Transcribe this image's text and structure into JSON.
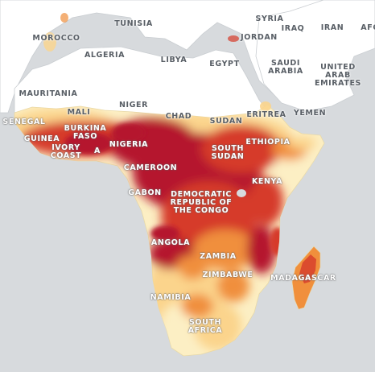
{
  "colors": {
    "ocean": "#d7dadd",
    "land_north": "#ffffff",
    "border": "#c9cdd1",
    "risk_very_high": "#b5122e",
    "risk_high": "#d63a2a",
    "risk_medium": "#f08f3c",
    "risk_low": "#fbd48c",
    "risk_very_low": "#fcefc4"
  },
  "labels": [
    {
      "id": "syria",
      "text": "SYRIA",
      "tone": "n"
    },
    {
      "id": "iraq",
      "text": "IRAQ",
      "tone": "n"
    },
    {
      "id": "iran",
      "text": "IRAN",
      "tone": "n"
    },
    {
      "id": "afg",
      "text": "AFG",
      "tone": "n"
    },
    {
      "id": "tunisia",
      "text": "TUNISIA",
      "tone": "n"
    },
    {
      "id": "morocco",
      "text": "MOROCCO",
      "tone": "n"
    },
    {
      "id": "jordan",
      "text": "JORDAN",
      "tone": "n"
    },
    {
      "id": "algeria",
      "text": "ALGERIA",
      "tone": "n"
    },
    {
      "id": "libya",
      "text": "LIBYA",
      "tone": "n"
    },
    {
      "id": "egypt",
      "text": "EGYPT",
      "tone": "n"
    },
    {
      "id": "saudi-arabia",
      "text": "SAUDI\nARABIA",
      "tone": "n"
    },
    {
      "id": "uae",
      "text": "UNITED\nARAB\nEMIRATES",
      "tone": "n"
    },
    {
      "id": "mauritania",
      "text": "MAURITANIA",
      "tone": "n"
    },
    {
      "id": "mali",
      "text": "MALI",
      "tone": "n"
    },
    {
      "id": "niger",
      "text": "NIGER",
      "tone": "n"
    },
    {
      "id": "chad",
      "text": "CHAD",
      "tone": "n"
    },
    {
      "id": "sudan",
      "text": "SUDAN",
      "tone": "n"
    },
    {
      "id": "eritrea",
      "text": "ERITREA",
      "tone": "n"
    },
    {
      "id": "yemen",
      "text": "YEMEN",
      "tone": "n"
    },
    {
      "id": "senegal",
      "text": "SENEGAL",
      "tone": "w"
    },
    {
      "id": "burkina-faso",
      "text": "BURKINA\nFASO",
      "tone": "w"
    },
    {
      "id": "guinea",
      "text": "GUINEA",
      "tone": "w"
    },
    {
      "id": "ivory-coast",
      "text": "IVORY\nCOAST",
      "tone": "w"
    },
    {
      "id": "ghana",
      "text": "A",
      "tone": "w"
    },
    {
      "id": "nigeria",
      "text": "NIGERIA",
      "tone": "w"
    },
    {
      "id": "ethiopia",
      "text": "ETHIOPIA",
      "tone": "w"
    },
    {
      "id": "south-sudan",
      "text": "SOUTH\nSUDAN",
      "tone": "w"
    },
    {
      "id": "cameroon",
      "text": "CAMEROON",
      "tone": "w"
    },
    {
      "id": "kenya",
      "text": "KENYA",
      "tone": "w"
    },
    {
      "id": "gabon",
      "text": "GABON",
      "tone": "w"
    },
    {
      "id": "drc",
      "text": "DEMOCRATIC\nREPUBLIC OF\nTHE CONGO",
      "tone": "w"
    },
    {
      "id": "angola",
      "text": "ANGOLA",
      "tone": "w"
    },
    {
      "id": "zambia",
      "text": "ZAMBIA",
      "tone": "w"
    },
    {
      "id": "zimbabwe",
      "text": "ZIMBABWE",
      "tone": "w"
    },
    {
      "id": "madagascar",
      "text": "MADAGASCAR",
      "tone": "w"
    },
    {
      "id": "namibia",
      "text": "NAMIBIA",
      "tone": "w"
    },
    {
      "id": "south-africa",
      "text": "SOUTH\nAFRICA",
      "tone": "w"
    }
  ]
}
